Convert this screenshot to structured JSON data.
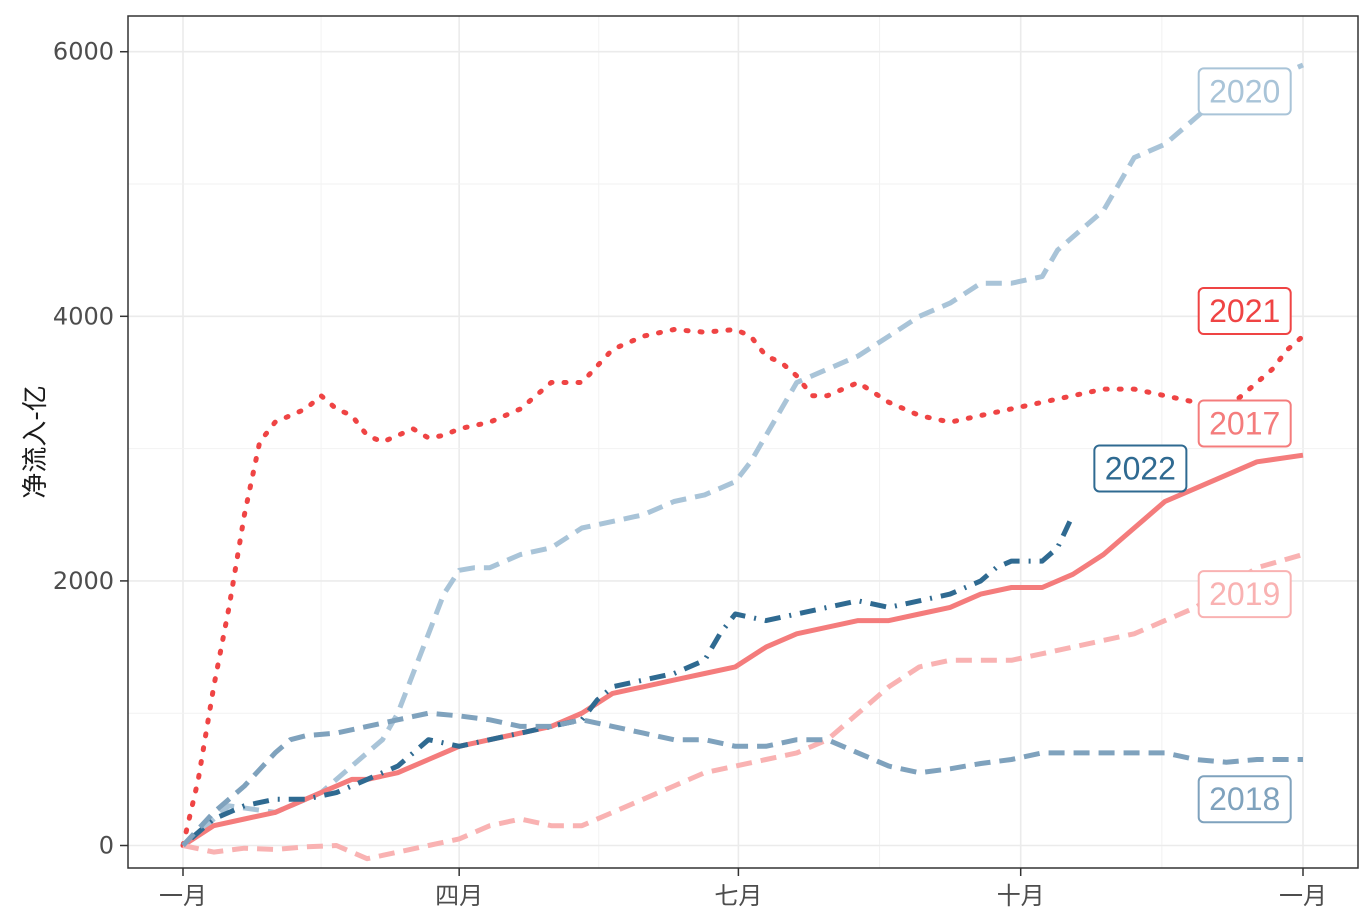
{
  "chart_data": {
    "type": "line",
    "title": "",
    "xlabel": "",
    "ylabel": "净流入-亿",
    "x_domain": [
      0,
      365
    ],
    "ylim": [
      -170,
      6270
    ],
    "x_ticks": [
      {
        "value": 0,
        "label": "一月"
      },
      {
        "value": 90,
        "label": "四月"
      },
      {
        "value": 181,
        "label": "七月"
      },
      {
        "value": 273,
        "label": "十月"
      },
      {
        "value": 365,
        "label": "一月"
      }
    ],
    "y_ticks": [
      {
        "value": 0,
        "label": "0"
      },
      {
        "value": 2000,
        "label": "2000"
      },
      {
        "value": 4000,
        "label": "4000"
      },
      {
        "value": 6000,
        "label": "6000"
      }
    ],
    "grid": true,
    "legend": "none",
    "series": [
      {
        "name": "2020",
        "color": "#a9c4d8",
        "dash": "dashed",
        "label_box": {
          "x": 346,
          "y": 5700
        },
        "x": [
          0,
          15,
          30,
          45,
          55,
          60,
          65,
          70,
          75,
          80,
          85,
          90,
          95,
          100,
          110,
          120,
          130,
          140,
          150,
          160,
          170,
          175,
          180,
          185,
          190,
          195,
          200,
          210,
          220,
          230,
          240,
          250,
          260,
          270,
          280,
          285,
          290,
          300,
          305,
          310,
          320,
          330,
          340,
          350,
          360,
          365
        ],
        "y": [
          0,
          300,
          250,
          400,
          600,
          700,
          800,
          1000,
          1300,
          1600,
          1900,
          2080,
          2100,
          2100,
          2200,
          2250,
          2400,
          2450,
          2500,
          2600,
          2650,
          2700,
          2750,
          2900,
          3100,
          3300,
          3500,
          3600,
          3700,
          3850,
          4000,
          4100,
          4250,
          4250,
          4300,
          4500,
          4600,
          4800,
          5000,
          5200,
          5300,
          5500,
          5700,
          5800,
          5850,
          5900
        ]
      },
      {
        "name": "2021",
        "color": "#ef4444",
        "dash": "dotted",
        "label_box": {
          "x": 346,
          "y": 4040
        },
        "x": [
          0,
          5,
          10,
          15,
          20,
          25,
          30,
          35,
          40,
          45,
          50,
          55,
          60,
          65,
          70,
          75,
          80,
          85,
          90,
          100,
          110,
          115,
          120,
          125,
          130,
          140,
          150,
          160,
          170,
          180,
          185,
          190,
          195,
          200,
          205,
          210,
          220,
          230,
          240,
          250,
          260,
          270,
          280,
          290,
          300,
          310,
          320,
          330,
          340,
          350,
          355,
          360,
          365
        ],
        "y": [
          0,
          500,
          1200,
          1800,
          2500,
          3050,
          3200,
          3250,
          3300,
          3400,
          3300,
          3250,
          3100,
          3050,
          3100,
          3150,
          3080,
          3100,
          3150,
          3200,
          3300,
          3400,
          3500,
          3500,
          3500,
          3750,
          3850,
          3900,
          3880,
          3900,
          3850,
          3700,
          3650,
          3550,
          3400,
          3400,
          3500,
          3350,
          3250,
          3200,
          3250,
          3300,
          3350,
          3400,
          3450,
          3450,
          3400,
          3350,
          3300,
          3500,
          3600,
          3750,
          3850
        ]
      },
      {
        "name": "2017",
        "color": "#f47c7c",
        "dash": "solid",
        "label_box": {
          "x": 346,
          "y": 3190
        },
        "x": [
          0,
          10,
          20,
          30,
          40,
          50,
          55,
          60,
          70,
          80,
          85,
          90,
          100,
          110,
          120,
          130,
          140,
          150,
          160,
          170,
          180,
          190,
          200,
          210,
          220,
          230,
          240,
          250,
          260,
          270,
          280,
          290,
          300,
          310,
          320,
          330,
          340,
          350,
          365
        ],
        "y": [
          0,
          150,
          200,
          250,
          350,
          450,
          500,
          500,
          550,
          650,
          700,
          750,
          800,
          850,
          900,
          1000,
          1150,
          1200,
          1250,
          1300,
          1350,
          1500,
          1600,
          1650,
          1700,
          1700,
          1750,
          1800,
          1900,
          1950,
          1950,
          2050,
          2200,
          2400,
          2600,
          2700,
          2800,
          2900,
          2950
        ]
      },
      {
        "name": "2022",
        "color": "#2f6a91",
        "dash": "dotdash",
        "label_box": {
          "x": 312,
          "y": 2850
        },
        "x": [
          0,
          10,
          20,
          30,
          40,
          50,
          60,
          70,
          80,
          90,
          100,
          110,
          120,
          130,
          135,
          140,
          150,
          160,
          170,
          175,
          180,
          190,
          200,
          210,
          220,
          230,
          240,
          250,
          260,
          265,
          270,
          275,
          280,
          285,
          290
        ],
        "y": [
          0,
          200,
          300,
          350,
          350,
          400,
          500,
          600,
          800,
          750,
          800,
          850,
          900,
          950,
          1100,
          1200,
          1250,
          1300,
          1400,
          1600,
          1750,
          1700,
          1750,
          1800,
          1850,
          1800,
          1850,
          1900,
          2000,
          2100,
          2150,
          2150,
          2150,
          2250,
          2500
        ]
      },
      {
        "name": "2019",
        "color": "#f9b2b2",
        "dash": "dashed",
        "label_box": {
          "x": 346,
          "y": 1900
        },
        "x": [
          0,
          10,
          20,
          30,
          40,
          50,
          60,
          70,
          80,
          90,
          100,
          110,
          120,
          130,
          140,
          150,
          160,
          170,
          180,
          190,
          200,
          210,
          220,
          230,
          240,
          250,
          260,
          270,
          280,
          290,
          300,
          310,
          320,
          330,
          340,
          350,
          365
        ],
        "y": [
          0,
          -50,
          -20,
          -30,
          -10,
          0,
          -100,
          -50,
          0,
          50,
          150,
          200,
          150,
          150,
          250,
          350,
          450,
          550,
          600,
          650,
          700,
          800,
          1000,
          1200,
          1350,
          1400,
          1400,
          1400,
          1450,
          1500,
          1550,
          1600,
          1700,
          1800,
          1950,
          2100,
          2200
        ]
      },
      {
        "name": "2018",
        "color": "#7fa2bd",
        "dash": "dashed",
        "label_box": {
          "x": 346,
          "y": 350
        },
        "x": [
          0,
          10,
          20,
          30,
          35,
          40,
          50,
          60,
          70,
          80,
          90,
          100,
          110,
          120,
          130,
          140,
          150,
          160,
          170,
          180,
          190,
          200,
          210,
          220,
          230,
          240,
          250,
          260,
          270,
          280,
          290,
          300,
          310,
          320,
          330,
          340,
          350,
          365
        ],
        "y": [
          0,
          250,
          450,
          700,
          800,
          830,
          850,
          900,
          950,
          1000,
          980,
          950,
          900,
          900,
          950,
          900,
          850,
          800,
          800,
          750,
          750,
          800,
          800,
          700,
          600,
          550,
          580,
          620,
          650,
          700,
          700,
          700,
          700,
          700,
          650,
          630,
          650,
          650
        ]
      }
    ]
  }
}
